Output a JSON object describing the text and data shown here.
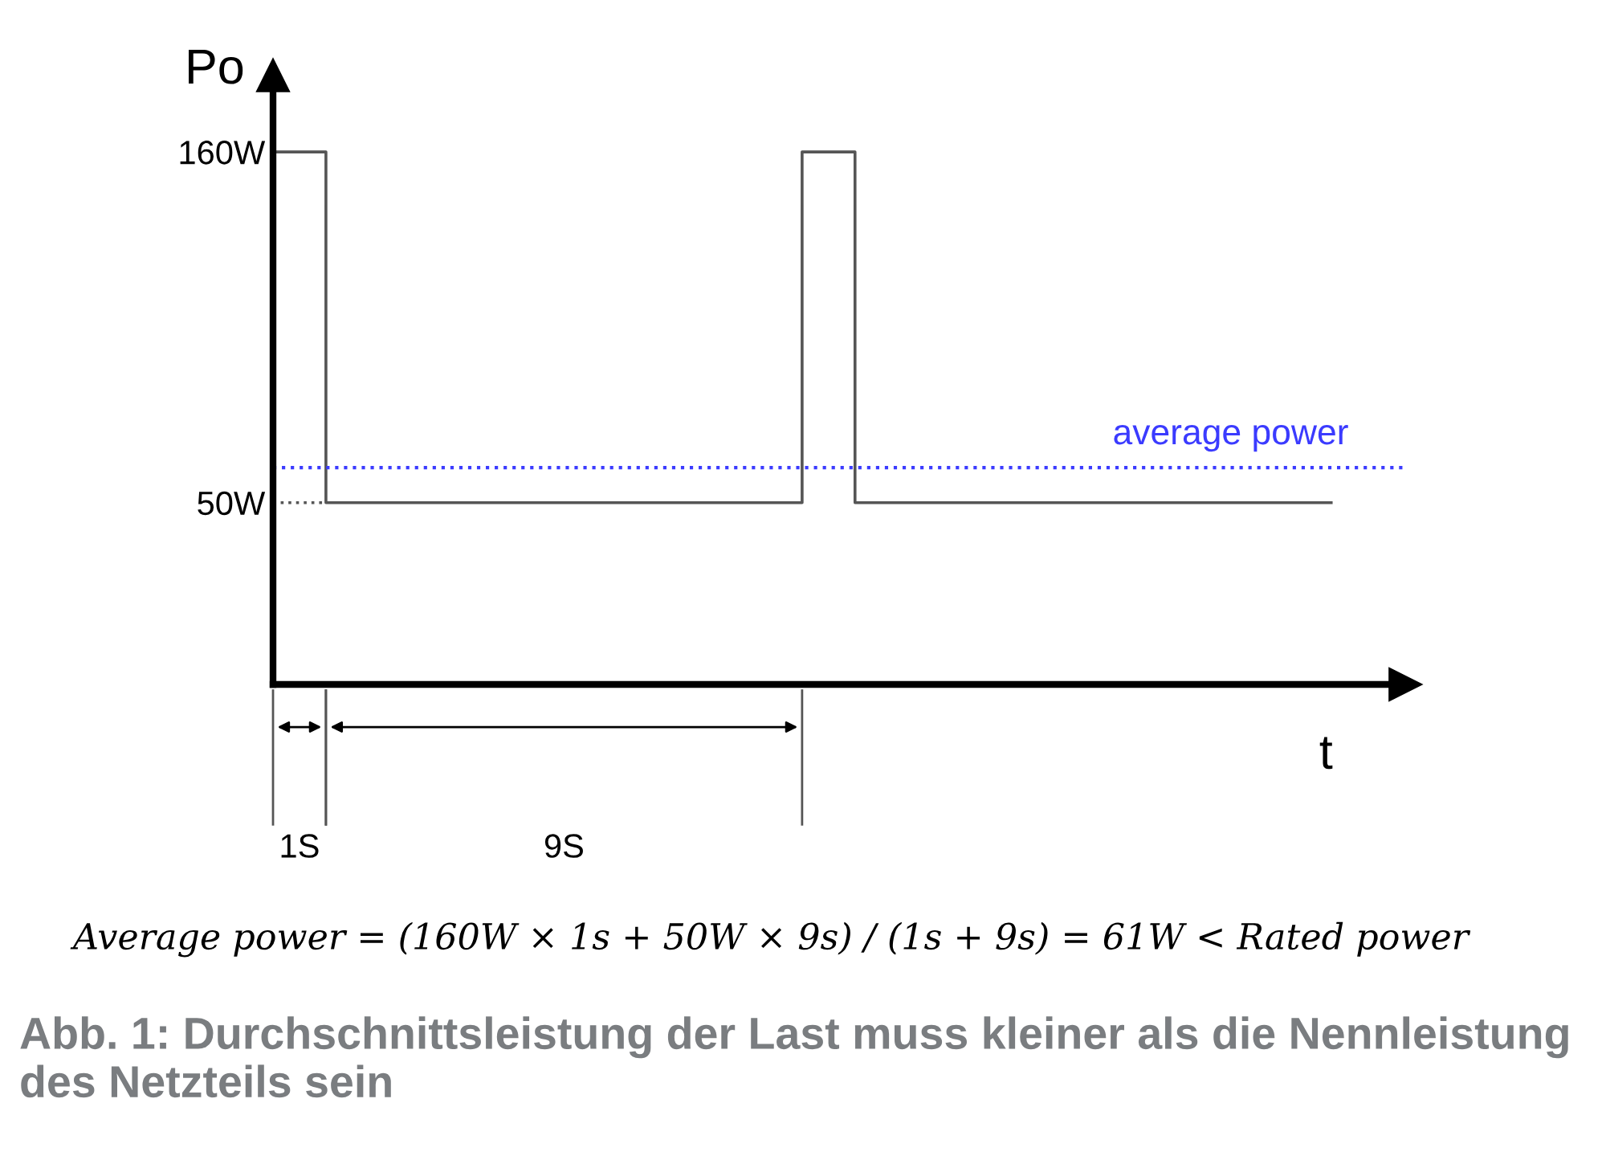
{
  "chart_data": {
    "type": "step",
    "xlabel": "t",
    "ylabel": "Po",
    "categories": [
      null,
      null,
      null,
      null,
      null,
      null,
      null,
      null,
      null,
      null,
      null,
      null,
      null,
      null,
      null,
      null,
      null,
      null,
      null,
      null,
      null
    ],
    "series": [
      {
        "color": "#555555",
        "values": [
          160,
          50,
          50,
          50,
          50,
          50,
          50,
          50,
          50,
          50,
          160,
          50,
          50,
          50,
          50,
          50,
          50,
          50,
          50,
          50,
          50
        ]
      },
      {
        "color": "#555555",
        "values": [
          50,
          50,
          null,
          null,
          null,
          null,
          null,
          null,
          null,
          null,
          null,
          null,
          null,
          null,
          null,
          null,
          null,
          null,
          null,
          null,
          null
        ],
        "type": "line",
        "line_style": "dotted"
      }
    ],
    "ylim": [
      -7,
      184
    ],
    "yticks": [
      {
        "value": 50,
        "label": "50W"
      },
      {
        "value": 160,
        "label": "160W"
      }
    ],
    "tick_labels": "y",
    "ref_lines": [
      {
        "axis": "y",
        "value": 61,
        "label": "average power",
        "color": "#3b3bff",
        "line_style": "dotted"
      }
    ],
    "annotations": [
      "1S",
      "9S",
      "Average power = (160W × 1s + 50W × 9s) / (1s + 9s) = 61W < Rated power",
      "Abb. 1: Durchschnittsleistung der Last muss kleiner als die Nennleistung des Netzteils sein"
    ],
    "grid": false
  }
}
